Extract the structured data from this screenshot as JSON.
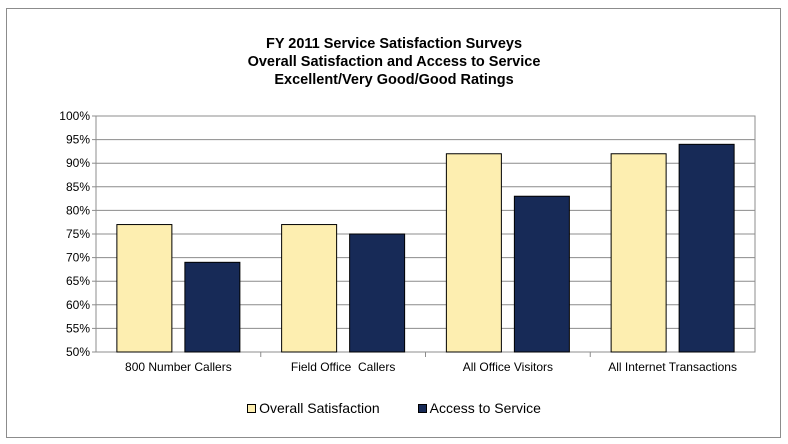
{
  "chart_data": {
    "type": "bar",
    "title_lines": [
      "FY 2011 Service Satisfaction Surveys",
      "Overall Satisfaction and Access to Service",
      "Excellent/Very Good/Good Ratings"
    ],
    "categories": [
      "800 Number Callers",
      "Field Office  Callers",
      "All Office Visitors",
      "All Internet Transactions"
    ],
    "series": [
      {
        "name": "Overall Satisfaction",
        "values": [
          77,
          77,
          92,
          92
        ],
        "color": "#fdeeb0"
      },
      {
        "name": "Access to Service",
        "values": [
          69,
          75,
          83,
          94
        ],
        "color": "#172a57"
      }
    ],
    "ylim": [
      50,
      100
    ],
    "yticks": [
      50,
      55,
      60,
      65,
      70,
      75,
      80,
      85,
      90,
      95,
      100
    ],
    "ytick_suffix": "%",
    "grid": true,
    "legend_position": "bottom"
  }
}
